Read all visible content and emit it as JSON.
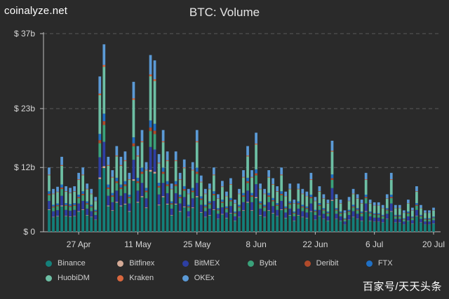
{
  "header": {
    "brand": "coinalyze.net",
    "title": "BTC: Volume"
  },
  "watermark": "百家号/天天头条",
  "chart_data": {
    "type": "bar",
    "stacked": true,
    "title": "BTC: Volume",
    "ylabel": "",
    "xlabel": "",
    "ylim": [
      0,
      37
    ],
    "y_unit": "billion USD",
    "y_ticks": [
      {
        "value": 0,
        "label": "$ 0"
      },
      {
        "value": 12,
        "label": "$ 12b"
      },
      {
        "value": 23,
        "label": "$ 23b"
      },
      {
        "value": 37,
        "label": "$ 37b"
      }
    ],
    "x_ticks": [
      {
        "day_index": 7,
        "label": "27 Apr"
      },
      {
        "day_index": 21,
        "label": "11 May"
      },
      {
        "day_index": 35,
        "label": "25 May"
      },
      {
        "day_index": 49,
        "label": "8 Jun"
      },
      {
        "day_index": 63,
        "label": "22 Jun"
      },
      {
        "day_index": 77,
        "label": "6 Jul"
      },
      {
        "day_index": 91,
        "label": "20 Jul"
      }
    ],
    "grid": "horizontal dashed",
    "legend_position": "bottom",
    "start_date": "20 Apr",
    "daily_totals": [
      12.0,
      8.0,
      8.4,
      14.0,
      8.5,
      8.2,
      8.5,
      11.0,
      12.0,
      9.0,
      8.0,
      6.5,
      29.0,
      35.0,
      14.0,
      11.5,
      16.0,
      14.0,
      15.0,
      11.0,
      28.0,
      16.0,
      19.0,
      13.0,
      33.0,
      32.0,
      14.5,
      19.0,
      15.0,
      9.0,
      15.0,
      11.0,
      13.5,
      8.0,
      13.0,
      19.0,
      10.5,
      8.0,
      9.0,
      12.0,
      7.0,
      9.5,
      7.5,
      10.0,
      6.0,
      8.0,
      11.5,
      16.0,
      11.5,
      18.5,
      9.0,
      8.0,
      11.5,
      10.0,
      8.5,
      12.0,
      7.5,
      9.0,
      6.0,
      9.0,
      8.0,
      7.5,
      11.0,
      6.5,
      8.5,
      7.0,
      6.0,
      17.0,
      7.0,
      6.0,
      4.0,
      6.5,
      8.0,
      7.0,
      6.0,
      11.0,
      6.0,
      5.5,
      5.5,
      5.0,
      7.0,
      11.0,
      5.0,
      5.0,
      4.0,
      6.0,
      4.5,
      8.5,
      5.0,
      4.0,
      4.0,
      4.5
    ],
    "series": [
      {
        "name": "Binance",
        "color": "#14807a",
        "share": 0.34
      },
      {
        "name": "Bitfinex",
        "color": "#d4aa96",
        "share": 0.01
      },
      {
        "name": "BitMEX",
        "color": "#2d3fa2",
        "share": 0.13
      },
      {
        "name": "Bybit",
        "color": "#3aa17a",
        "share": 0.09
      },
      {
        "name": "Deribit",
        "color": "#b04a2a",
        "share": 0.02
      },
      {
        "name": "FTX",
        "color": "#1f6fc4",
        "share": 0.04
      },
      {
        "name": "HuobiDM",
        "color": "#6dbfa4",
        "share": 0.25
      },
      {
        "name": "Kraken",
        "color": "#d9673e",
        "share": 0.01
      },
      {
        "name": "OKEx",
        "color": "#5b9ad6",
        "share": 0.11
      }
    ]
  }
}
